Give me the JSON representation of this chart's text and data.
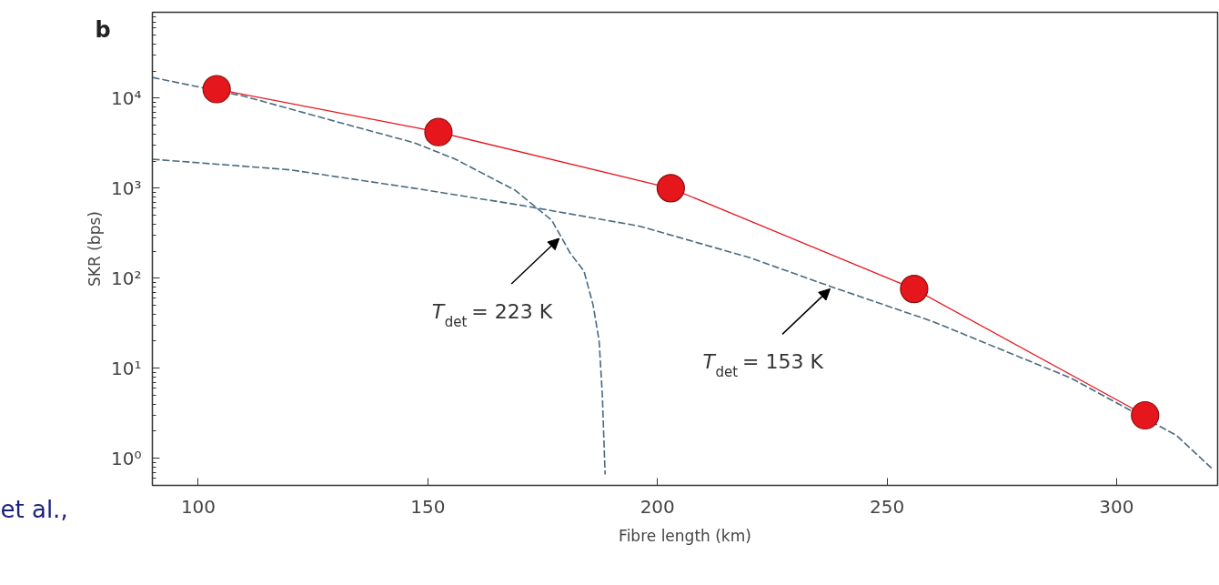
{
  "chart_data": {
    "type": "line",
    "xlabel": "Fibre length (km)",
    "ylabel": "SKR (bps)",
    "log": "y",
    "xlim": [
      90,
      322
    ],
    "ylim": [
      0.5,
      90000
    ],
    "xticks": [
      100,
      150,
      200,
      250,
      300
    ],
    "yticks": [
      {
        "value": 1,
        "label": "10⁰"
      },
      {
        "value": 10,
        "label": "10¹"
      },
      {
        "value": 100,
        "label": "10²"
      },
      {
        "value": 1000,
        "label": "10³"
      },
      {
        "value": 10000,
        "label": "10⁴"
      }
    ],
    "grid": false,
    "series": [
      {
        "color": "#4a6a80",
        "line_style": "dashed",
        "marker": "none",
        "x": [
          90,
          110,
          130,
          147,
          156,
          169,
          177,
          181,
          184,
          186,
          187.3,
          188,
          188.6
        ],
        "values": [
          17000,
          10500,
          5500,
          3200,
          2100,
          950,
          440,
          190,
          120,
          50,
          20,
          5,
          0.66
        ]
      },
      {
        "color": "#4a6a80",
        "line_style": "dashed",
        "marker": "none",
        "x": [
          90,
          120,
          147,
          170,
          196,
          220,
          238,
          260,
          290,
          313,
          321
        ],
        "values": [
          2100,
          1600,
          1000,
          650,
          380,
          170,
          80,
          33,
          7.8,
          1.8,
          0.75
        ]
      },
      {
        "color": "#e5161c",
        "line_style": "solid",
        "marker": "circle",
        "x": [
          104,
          152.3,
          202.9,
          255.9,
          306.2
        ],
        "values": [
          12600,
          4200,
          1000,
          76,
          3.0
        ]
      }
    ],
    "annotations": [
      "b",
      "et al.,",
      {
        "text": "T$_{det}$ = 223 K",
        "x": 179,
        "y": 290
      },
      {
        "text": "T$_{det}$ = 153 K",
        "x": 238,
        "y": 80
      }
    ]
  }
}
